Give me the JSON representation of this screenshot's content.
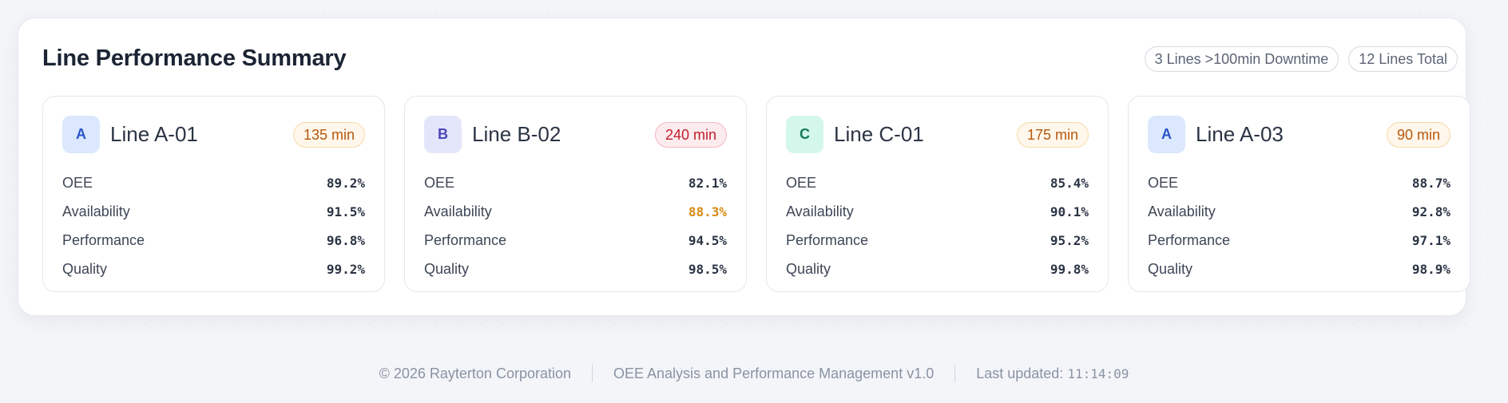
{
  "panel": {
    "title": "Line Performance Summary",
    "pills": [
      "3 Lines >100min Downtime",
      "12 Lines Total"
    ]
  },
  "colors": {
    "warn_bg": "#fff7eb",
    "warn_border": "#f6d9a8",
    "warn_text": "#b5580d",
    "danger_bg": "#fdecee",
    "danger_border": "#f3b8bf",
    "danger_text": "#c0202e",
    "highlight_value": "#d88a12"
  },
  "cards": [
    {
      "initial": "A",
      "avatar_bg": "#dbe8fd",
      "avatar_fg": "#2a54c9",
      "name": "Line A-01",
      "downtime": "135 min",
      "severity": "warn",
      "metrics": [
        {
          "label": "OEE",
          "value": "89.2%"
        },
        {
          "label": "Availability",
          "value": "91.5%"
        },
        {
          "label": "Performance",
          "value": "96.8%"
        },
        {
          "label": "Quality",
          "value": "99.2%"
        }
      ]
    },
    {
      "initial": "B",
      "avatar_bg": "#e3e6fb",
      "avatar_fg": "#4b45b8",
      "name": "Line B-02",
      "downtime": "240 min",
      "severity": "danger",
      "metrics": [
        {
          "label": "OEE",
          "value": "82.1%"
        },
        {
          "label": "Availability",
          "value": "88.3%",
          "highlight": true
        },
        {
          "label": "Performance",
          "value": "94.5%"
        },
        {
          "label": "Quality",
          "value": "98.5%"
        }
      ]
    },
    {
      "initial": "C",
      "avatar_bg": "#d4f7ec",
      "avatar_fg": "#137a5a",
      "name": "Line C-01",
      "downtime": "175 min",
      "severity": "warn",
      "metrics": [
        {
          "label": "OEE",
          "value": "85.4%"
        },
        {
          "label": "Availability",
          "value": "90.1%"
        },
        {
          "label": "Performance",
          "value": "95.2%"
        },
        {
          "label": "Quality",
          "value": "99.8%"
        }
      ]
    },
    {
      "initial": "A",
      "avatar_bg": "#dbe8fd",
      "avatar_fg": "#2a54c9",
      "name": "Line A-03",
      "downtime": "90 min",
      "severity": "warn",
      "metrics": [
        {
          "label": "OEE",
          "value": "88.7%"
        },
        {
          "label": "Availability",
          "value": "92.8%"
        },
        {
          "label": "Performance",
          "value": "97.1%"
        },
        {
          "label": "Quality",
          "value": "98.9%"
        }
      ]
    }
  ],
  "footer": {
    "copyright": "© 2026 Rayterton Corporation",
    "product": "OEE Analysis and Performance Management v1.0",
    "updated_label": "Last updated:",
    "updated_time": "11:14:09"
  }
}
